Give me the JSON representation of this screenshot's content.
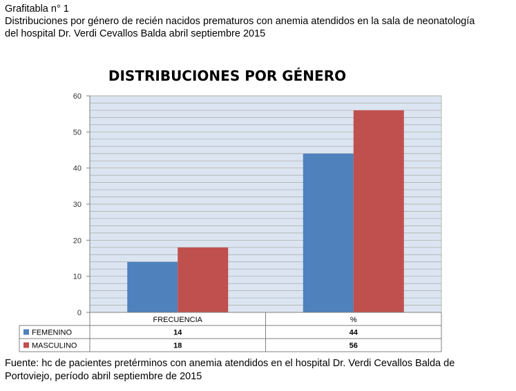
{
  "header": {
    "label": "Grafitabla  n° 1",
    "line1": "Distribuciones por género de recién nacidos  prematuros con anemia  atendidos en la sala de neonatología",
    "line2": "del hospital Dr. Verdi  Cevallos Balda abril septiembre 2015"
  },
  "footer": {
    "line1": "Fuente: hc de pacientes  pretérminos con anemia  atendidos en el hospital Dr. Verdi  Cevallos Balda de",
    "line2": "Portoviejo, período abril septiembre de 2015"
  },
  "chart_data": {
    "type": "bar",
    "title": "DISTRIBUCIONES POR GÉNERO",
    "categories": [
      "FRECUENCIA",
      "%"
    ],
    "series": [
      {
        "name": "FEMENINO",
        "values": [
          14,
          44
        ],
        "color": "#4f81bd",
        "labels": [
          "14",
          "44"
        ]
      },
      {
        "name": "MASCULINO",
        "values": [
          18,
          56
        ],
        "color": "#c0504d",
        "labels": [
          "18",
          "56"
        ]
      }
    ],
    "yticks": [
      "0",
      "10",
      "20",
      "30",
      "40",
      "50",
      "60"
    ],
    "ylim": [
      0,
      60
    ],
    "grid": true,
    "legend": "data-table"
  }
}
